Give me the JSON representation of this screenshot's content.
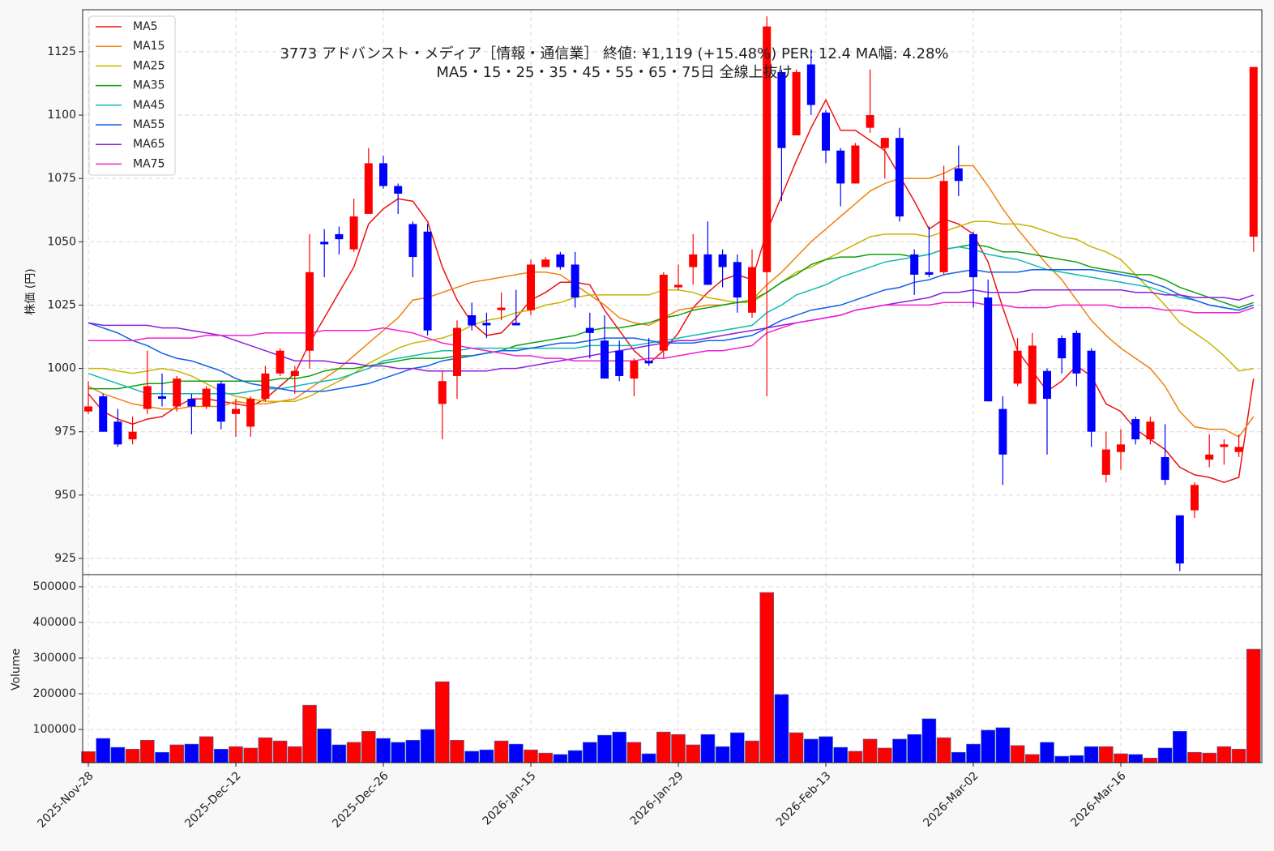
{
  "chart_data": [
    {
      "type": "candlestick",
      "title": "3773  アドバンスト・メディア［情報・通信業］ 終値: ¥1,119 (+15.48%)  PER: 12.4  MA幅: 4.28%",
      "subtitle": "MA5・15・25・35・45・55・65・75日 全線上抜け",
      "ylabel": "株価 (円)",
      "up_color": "#ff0000",
      "down_color": "#0000ff",
      "open": [
        983,
        989,
        979,
        972,
        984,
        989,
        985,
        988,
        985,
        994,
        982,
        977,
        988,
        998,
        997,
        1007,
        1050,
        1053,
        1047,
        1061,
        1081,
        1072,
        1057,
        1054,
        986,
        997,
        1021,
        1018,
        1023,
        1018,
        1023,
        1040,
        1045,
        1041,
        1016,
        1011,
        1007,
        996,
        1003,
        1007,
        1032,
        1040,
        1045,
        1045,
        1042,
        1022,
        1038,
        1117,
        1092,
        1120,
        1101,
        1086,
        1073,
        1095,
        1087,
        1091,
        1045,
        1038,
        1038,
        1079,
        1053,
        1028,
        984,
        994,
        986,
        999,
        1012,
        1014,
        1007,
        958,
        967,
        980,
        972,
        965,
        942,
        944,
        964,
        969,
        967,
        1052
      ],
      "high": [
        995,
        990,
        984,
        981,
        1007,
        998,
        997,
        990,
        993,
        995,
        988,
        989,
        1001,
        1008,
        1001,
        1053,
        1055,
        1056,
        1067,
        1087,
        1084,
        1073,
        1058,
        1057,
        999,
        1019,
        1026,
        1022,
        1030,
        1031,
        1043,
        1044,
        1046,
        1046,
        1022,
        1021,
        1011,
        1004,
        1012,
        1038,
        1041,
        1053,
        1058,
        1047,
        1045,
        1047,
        1139,
        1118,
        1118,
        1126,
        1102,
        1087,
        1089,
        1118,
        1091,
        1095,
        1047,
        1056,
        1080,
        1088,
        1054,
        1035,
        989,
        1012,
        1014,
        1000,
        1013,
        1015,
        1008,
        975,
        976,
        981,
        981,
        978,
        942,
        955,
        974,
        972,
        974,
        1119
      ],
      "low": [
        982,
        975,
        969,
        970,
        982,
        985,
        983,
        974,
        984,
        976,
        973,
        973,
        987,
        997,
        990,
        1000,
        1036,
        1045,
        1046,
        1061,
        1071,
        1061,
        1036,
        1013,
        972,
        988,
        1015,
        1012,
        1019,
        1017,
        1021,
        1040,
        1039,
        1024,
        1004,
        996,
        995,
        989,
        1001,
        1004,
        1031,
        1033,
        1033,
        1032,
        1022,
        1020,
        989,
        1066,
        1092,
        1100,
        1081,
        1064,
        1073,
        1093,
        1075,
        1058,
        1029,
        1036,
        1037,
        1068,
        1024,
        987,
        954,
        993,
        986,
        966,
        998,
        993,
        969,
        955,
        960,
        970,
        970,
        954,
        920,
        941,
        961,
        962,
        965,
        1046
      ],
      "close": [
        985,
        975,
        970,
        975,
        993,
        988,
        996,
        985,
        992,
        979,
        984,
        988,
        998,
        1007,
        999,
        1038,
        1049,
        1051,
        1060,
        1081,
        1072,
        1069,
        1044,
        1015,
        995,
        1016,
        1017,
        1017,
        1024,
        1017,
        1041,
        1043,
        1040,
        1028,
        1014,
        996,
        997,
        1003,
        1002,
        1037,
        1033,
        1045,
        1033,
        1040,
        1028,
        1040,
        1135,
        1087,
        1117,
        1104,
        1086,
        1073,
        1088,
        1100,
        1091,
        1060,
        1037,
        1037,
        1074,
        1074,
        1036,
        987,
        966,
        1007,
        1009,
        988,
        1004,
        998,
        975,
        968,
        970,
        972,
        979,
        956,
        923,
        954,
        966,
        970,
        969,
        1119
      ],
      "series": [
        {
          "name": "MA5",
          "color": "#ee1111",
          "values": [
            990,
            983,
            980,
            978,
            980,
            981,
            985,
            988,
            988,
            987,
            986,
            985,
            988,
            993,
            998,
            1010,
            1020,
            1030,
            1040,
            1057,
            1063,
            1067,
            1066,
            1058,
            1040,
            1027,
            1018,
            1013,
            1014,
            1020,
            1027,
            1030,
            1034,
            1034,
            1033,
            1023,
            1015,
            1007,
            1002,
            1007,
            1014,
            1024,
            1030,
            1035,
            1037,
            1035,
            1054,
            1068,
            1082,
            1095,
            1106,
            1094,
            1094,
            1090,
            1086,
            1076,
            1066,
            1055,
            1059,
            1057,
            1053,
            1042,
            1024,
            1007,
            999,
            991,
            995,
            1001,
            997,
            986,
            983,
            976,
            972,
            968,
            961,
            958,
            957,
            955,
            957,
            996
          ]
        },
        {
          "name": "MA15",
          "color": "#f08010",
          "values": [
            993,
            990,
            988,
            986,
            985,
            984,
            984,
            985,
            985,
            985,
            987,
            986,
            986,
            987,
            988,
            992,
            996,
            1000,
            1005,
            1010,
            1015,
            1020,
            1027,
            1028,
            1030,
            1032,
            1034,
            1035,
            1036,
            1037,
            1038,
            1038,
            1037,
            1033,
            1029,
            1025,
            1020,
            1018,
            1017,
            1020,
            1023,
            1024,
            1025,
            1025,
            1026,
            1027,
            1033,
            1038,
            1044,
            1050,
            1055,
            1060,
            1065,
            1070,
            1073,
            1075,
            1075,
            1075,
            1077,
            1080,
            1080,
            1072,
            1063,
            1055,
            1048,
            1041,
            1035,
            1027,
            1019,
            1013,
            1008,
            1004,
            1000,
            993,
            983,
            977,
            976,
            976,
            973,
            981
          ]
        },
        {
          "name": "MA25",
          "color": "#c8b400",
          "values": [
            1000,
            1000,
            999,
            998,
            999,
            1000,
            999,
            997,
            994,
            991,
            989,
            988,
            987,
            987,
            987,
            989,
            992,
            995,
            998,
            1002,
            1005,
            1008,
            1010,
            1011,
            1012,
            1014,
            1017,
            1019,
            1020,
            1022,
            1023,
            1025,
            1026,
            1028,
            1029,
            1029,
            1029,
            1029,
            1029,
            1031,
            1031,
            1030,
            1028,
            1027,
            1026,
            1026,
            1030,
            1034,
            1038,
            1040,
            1043,
            1046,
            1049,
            1052,
            1053,
            1053,
            1053,
            1052,
            1054,
            1056,
            1058,
            1058,
            1057,
            1057,
            1056,
            1054,
            1052,
            1051,
            1048,
            1046,
            1043,
            1037,
            1031,
            1025,
            1018,
            1014,
            1010,
            1005,
            999,
            1000
          ]
        },
        {
          "name": "MA35",
          "color": "#10a010",
          "values": [
            992,
            992,
            992,
            993,
            994,
            994,
            995,
            995,
            995,
            995,
            995,
            995,
            995,
            996,
            996,
            997,
            999,
            1000,
            1000,
            1001,
            1002,
            1003,
            1004,
            1004,
            1004,
            1005,
            1005,
            1006,
            1007,
            1009,
            1010,
            1011,
            1012,
            1013,
            1015,
            1016,
            1016,
            1017,
            1018,
            1020,
            1021,
            1023,
            1024,
            1025,
            1026,
            1027,
            1030,
            1034,
            1037,
            1041,
            1043,
            1044,
            1044,
            1045,
            1045,
            1045,
            1044,
            1045,
            1047,
            1048,
            1049,
            1048,
            1046,
            1046,
            1045,
            1044,
            1043,
            1042,
            1040,
            1039,
            1038,
            1037,
            1037,
            1035,
            1032,
            1030,
            1028,
            1026,
            1024,
            1026
          ]
        },
        {
          "name": "MA45",
          "color": "#10bab0",
          "values": [
            998,
            996,
            994,
            992,
            990,
            990,
            990,
            990,
            990,
            990,
            990,
            991,
            992,
            992,
            993,
            994,
            995,
            996,
            998,
            1000,
            1003,
            1004,
            1005,
            1006,
            1007,
            1007,
            1008,
            1008,
            1008,
            1008,
            1008,
            1008,
            1008,
            1008,
            1009,
            1009,
            1009,
            1009,
            1010,
            1011,
            1012,
            1013,
            1014,
            1015,
            1016,
            1017,
            1022,
            1025,
            1029,
            1031,
            1033,
            1036,
            1038,
            1040,
            1042,
            1043,
            1044,
            1045,
            1047,
            1048,
            1047,
            1045,
            1044,
            1043,
            1041,
            1039,
            1038,
            1037,
            1036,
            1035,
            1034,
            1033,
            1032,
            1030,
            1028,
            1027,
            1025,
            1024,
            1023,
            1025
          ]
        },
        {
          "name": "MA55",
          "color": "#1060e8",
          "values": [
            1018,
            1016,
            1014,
            1011,
            1009,
            1006,
            1004,
            1003,
            1001,
            999,
            996,
            994,
            993,
            992,
            991,
            991,
            991,
            992,
            993,
            994,
            996,
            998,
            1000,
            1001,
            1003,
            1004,
            1005,
            1006,
            1007,
            1007,
            1008,
            1009,
            1010,
            1010,
            1011,
            1012,
            1012,
            1012,
            1011,
            1010,
            1010,
            1010,
            1011,
            1011,
            1012,
            1013,
            1016,
            1019,
            1021,
            1023,
            1024,
            1025,
            1027,
            1029,
            1031,
            1032,
            1034,
            1035,
            1037,
            1038,
            1039,
            1038,
            1038,
            1038,
            1039,
            1039,
            1039,
            1039,
            1039,
            1038,
            1037,
            1036,
            1034,
            1032,
            1029,
            1027,
            1025,
            1024,
            1023,
            1025
          ]
        },
        {
          "name": "MA65",
          "color": "#8a20e0",
          "values": [
            1018,
            1017,
            1017,
            1017,
            1017,
            1016,
            1016,
            1015,
            1014,
            1013,
            1011,
            1009,
            1007,
            1005,
            1003,
            1003,
            1003,
            1002,
            1002,
            1001,
            1001,
            1000,
            1000,
            999,
            999,
            999,
            999,
            999,
            1000,
            1000,
            1001,
            1002,
            1003,
            1004,
            1005,
            1006,
            1007,
            1008,
            1009,
            1010,
            1011,
            1011,
            1012,
            1013,
            1014,
            1015,
            1016,
            1017,
            1018,
            1019,
            1020,
            1021,
            1023,
            1024,
            1025,
            1026,
            1027,
            1028,
            1030,
            1030,
            1031,
            1030,
            1030,
            1030,
            1031,
            1031,
            1031,
            1031,
            1031,
            1031,
            1031,
            1030,
            1030,
            1029,
            1029,
            1028,
            1028,
            1028,
            1027,
            1029
          ]
        },
        {
          "name": "MA75",
          "color": "#f020d0",
          "values": [
            1011,
            1011,
            1011,
            1011,
            1012,
            1012,
            1012,
            1012,
            1013,
            1013,
            1013,
            1013,
            1014,
            1014,
            1014,
            1014,
            1015,
            1015,
            1015,
            1015,
            1016,
            1015,
            1014,
            1012,
            1010,
            1009,
            1008,
            1007,
            1006,
            1005,
            1005,
            1004,
            1004,
            1003,
            1003,
            1003,
            1003,
            1003,
            1004,
            1004,
            1005,
            1006,
            1007,
            1007,
            1008,
            1009,
            1014,
            1016,
            1018,
            1019,
            1020,
            1021,
            1023,
            1024,
            1025,
            1025,
            1025,
            1025,
            1026,
            1026,
            1026,
            1025,
            1025,
            1024,
            1024,
            1024,
            1025,
            1025,
            1025,
            1025,
            1024,
            1024,
            1024,
            1023,
            1023,
            1022,
            1022,
            1022,
            1022,
            1024
          ]
        }
      ],
      "ylim": [
        918.6,
        1141.6
      ],
      "yticks": [
        925,
        950,
        975,
        1000,
        1025,
        1050,
        1075,
        1100,
        1125
      ],
      "grid": true,
      "legend": "upper left"
    },
    {
      "type": "bar",
      "ylabel": "Volume",
      "categories": [
        "2025-Nov-28",
        null,
        null,
        null,
        null,
        null,
        null,
        null,
        null,
        null,
        "2025-Dec-12",
        null,
        null,
        null,
        null,
        null,
        null,
        null,
        null,
        null,
        "2025-Dec-26",
        null,
        null,
        null,
        null,
        null,
        null,
        null,
        null,
        null,
        "2026-Jan-15",
        null,
        null,
        null,
        null,
        null,
        null,
        null,
        null,
        null,
        "2026-Jan-29",
        null,
        null,
        null,
        null,
        null,
        null,
        null,
        null,
        null,
        "2026-Feb-13",
        null,
        null,
        null,
        null,
        null,
        null,
        null,
        null,
        null,
        "2026-Mar-02",
        null,
        null,
        null,
        null,
        null,
        null,
        null,
        null,
        null,
        "2026-Mar-16",
        null,
        null,
        null,
        null,
        null,
        null,
        null,
        null,
        null
      ],
      "values": [
        38000,
        75000,
        50000,
        45000,
        70000,
        36000,
        57000,
        59000,
        80000,
        45000,
        52000,
        48000,
        77000,
        68000,
        52000,
        168000,
        102000,
        57000,
        64000,
        95000,
        75000,
        64000,
        70000,
        100000,
        234000,
        70000,
        39000,
        43000,
        68000,
        59000,
        43000,
        34000,
        30000,
        41000,
        64000,
        84000,
        93000,
        64000,
        32000,
        93000,
        86000,
        57000,
        86000,
        52000,
        91000,
        68000,
        484000,
        198000,
        91000,
        73000,
        80000,
        50000,
        39000,
        73000,
        48000,
        73000,
        86000,
        130000,
        77000,
        36000,
        59000,
        98000,
        105000,
        55000,
        30000,
        64000,
        25000,
        27000,
        52000,
        52000,
        32000,
        30000,
        20000,
        48000,
        95000,
        36000,
        34000,
        52000,
        45000,
        325000
      ],
      "ylim": [
        7000,
        534000
      ],
      "yticks": [
        100000,
        200000,
        300000,
        400000,
        500000
      ],
      "grid": true
    }
  ]
}
